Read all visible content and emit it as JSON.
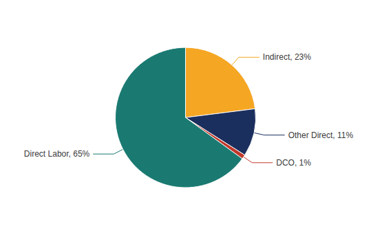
{
  "chart_data": {
    "type": "pie",
    "categories": [
      "Indirect, 23%",
      "Other Direct, 11%",
      "DCO, 1%",
      "Direct Labor, 65%"
    ],
    "values": [
      23,
      11,
      1,
      65
    ],
    "colors": [
      "#f5a623",
      "#1b2f5e",
      "#c0392b",
      "#1a7a72"
    ]
  }
}
